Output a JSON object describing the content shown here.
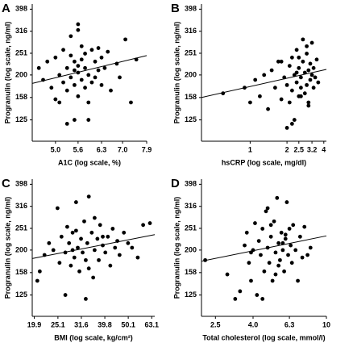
{
  "chart_data": [
    {
      "type": "scatter",
      "label": "A",
      "xlabel": "A1C (log scale, %)",
      "ylabel": "Progranulin (log scale, ng/ml)",
      "xlog": true,
      "ylog": true,
      "color": "#000000",
      "xlim": [
        4.45,
        7.9
      ],
      "ylim": [
        100,
        420
      ],
      "xticks": [
        {
          "value": 5,
          "label": "5.0"
        },
        5.6,
        6.3,
        {
          "value": 7,
          "label": "7.0"
        },
        7.9
      ],
      "yticks": [
        125,
        158,
        200,
        251,
        316,
        398
      ],
      "x": [
        4.6,
        4.7,
        4.8,
        4.9,
        5.0,
        5.0,
        5.1,
        5.1,
        5.2,
        5.2,
        5.3,
        5.3,
        5.3,
        5.4,
        5.4,
        5.4,
        5.5,
        5.5,
        5.5,
        5.5,
        5.6,
        5.6,
        5.6,
        5.6,
        5.7,
        5.7,
        5.7,
        5.8,
        5.8,
        5.8,
        5.9,
        5.9,
        6.0,
        6.0,
        6.1,
        6.1,
        6.2,
        6.2,
        6.3,
        6.3,
        6.4,
        6.5,
        6.6,
        6.8,
        6.9,
        7.1,
        7.3,
        7.5,
        5.6,
        5.9
      ],
      "y": [
        215,
        190,
        230,
        175,
        155,
        240,
        200,
        150,
        185,
        260,
        215,
        120,
        170,
        195,
        245,
        300,
        180,
        210,
        230,
        125,
        205,
        340,
        160,
        220,
        190,
        270,
        235,
        175,
        215,
        250,
        200,
        150,
        260,
        185,
        230,
        195,
        265,
        210,
        180,
        240,
        215,
        255,
        170,
        225,
        195,
        290,
        150,
        235,
        320,
        125
      ],
      "trend": {
        "x": [
          4.45,
          7.9
        ],
        "y": [
          183,
          245
        ]
      }
    },
    {
      "type": "scatter",
      "label": "B",
      "xlabel": "hsCRP (log scale, mg/dl)",
      "ylabel": "Progranulin (log scale, ng/ml)",
      "xlog": true,
      "ylog": true,
      "color": "#000000",
      "xlim": [
        0.4,
        4.2
      ],
      "ylim": [
        100,
        420
      ],
      "xticks": [
        1,
        2,
        2.5,
        3.2,
        4
      ],
      "yticks": [
        125,
        158,
        200,
        251,
        316,
        398
      ],
      "x": [
        0.6,
        0.9,
        1.0,
        1.1,
        1.2,
        1.3,
        1.4,
        1.5,
        1.6,
        1.7,
        1.8,
        1.9,
        2.0,
        2.0,
        2.1,
        2.1,
        2.2,
        2.2,
        2.3,
        2.3,
        2.4,
        2.4,
        2.5,
        2.5,
        2.5,
        2.6,
        2.6,
        2.7,
        2.7,
        2.8,
        2.8,
        2.9,
        2.9,
        3.0,
        3.0,
        3.1,
        3.1,
        3.2,
        3.2,
        3.3,
        3.3,
        3.4,
        3.5,
        3.6,
        2.2,
        1.8,
        2.6,
        2.9,
        3.0,
        2.4
      ],
      "y": [
        165,
        175,
        150,
        190,
        160,
        200,
        140,
        210,
        175,
        230,
        155,
        195,
        115,
        180,
        220,
        150,
        240,
        170,
        125,
        200,
        260,
        185,
        160,
        215,
        240,
        195,
        175,
        230,
        290,
        165,
        205,
        250,
        180,
        210,
        150,
        225,
        190,
        200,
        280,
        175,
        215,
        195,
        235,
        185,
        120,
        230,
        160,
        270,
        145,
        205
      ],
      "trend": {
        "x": [
          0.4,
          4.2
        ],
        "y": [
          158,
          212
        ]
      }
    },
    {
      "type": "scatter",
      "label": "C",
      "xlabel": "BMI (log scale, kg/cm²)",
      "ylabel": "Progranulin (log scale, ng/ml)",
      "xlog": true,
      "ylog": true,
      "color": "#000000",
      "xlim": [
        19.5,
        65
      ],
      "ylim": [
        100,
        420
      ],
      "xticks": [
        19.9,
        25.1,
        31.6,
        39.8,
        50.1,
        63.1
      ],
      "yticks": [
        125,
        158,
        200,
        251,
        316,
        398
      ],
      "x": [
        20.5,
        21,
        22,
        23,
        24,
        25,
        25.5,
        26,
        27,
        27.5,
        28,
        28.5,
        29,
        29.5,
        30,
        30.5,
        31,
        31.5,
        32,
        32.5,
        33,
        33.5,
        34,
        35,
        35.5,
        36,
        37,
        37.5,
        38,
        39,
        40,
        41,
        42,
        43,
        44,
        45,
        46,
        48,
        50,
        52,
        55,
        58,
        62,
        27,
        30,
        33,
        36,
        39,
        29,
        34
      ],
      "y": [
        145,
        160,
        190,
        215,
        200,
        310,
        175,
        230,
        195,
        255,
        215,
        170,
        240,
        185,
        330,
        205,
        160,
        225,
        195,
        270,
        180,
        215,
        350,
        240,
        150,
        200,
        225,
        180,
        260,
        210,
        195,
        230,
        170,
        250,
        205,
        220,
        190,
        240,
        215,
        205,
        185,
        260,
        265,
        125,
        245,
        120,
        280,
        230,
        200,
        165
      ],
      "trend": {
        "x": [
          19.5,
          65
        ],
        "y": [
          183,
          235
        ]
      }
    },
    {
      "type": "scatter",
      "label": "D",
      "xlabel": "Total cholesterol (log scale, mmol/l)",
      "ylabel": "Progranulin (log scale, ng/ml)",
      "xlog": true,
      "ylog": true,
      "color": "#000000",
      "xlim": [
        2.1,
        10
      ],
      "ylim": [
        100,
        420
      ],
      "xticks": [
        2.5,
        {
          "value": 4,
          "label": "4.0"
        },
        6.3,
        10
      ],
      "yticks": [
        125,
        158,
        200,
        251,
        316,
        398
      ],
      "x": [
        2.2,
        2.9,
        3.2,
        3.4,
        3.6,
        3.7,
        3.8,
        3.9,
        4.0,
        4.1,
        4.2,
        4.3,
        4.4,
        4.5,
        4.6,
        4.7,
        4.8,
        4.9,
        5.0,
        5.1,
        5.2,
        5.3,
        5.4,
        5.5,
        5.6,
        5.7,
        5.8,
        5.9,
        6.0,
        6.1,
        6.2,
        6.3,
        6.4,
        6.5,
        6.6,
        6.8,
        7.0,
        7.2,
        7.4,
        7.6,
        7.9,
        8.2,
        4.5,
        5.0,
        5.5,
        6.0,
        4.8,
        5.3,
        5.8,
        3.9
      ],
      "y": [
        180,
        155,
        120,
        130,
        210,
        240,
        175,
        145,
        200,
        265,
        125,
        220,
        190,
        250,
        160,
        300,
        205,
        175,
        230,
        145,
        270,
        195,
        345,
        215,
        180,
        240,
        200,
        160,
        225,
        330,
        190,
        250,
        210,
        175,
        260,
        200,
        145,
        230,
        185,
        255,
        190,
        205,
        120,
        260,
        170,
        235,
        310,
        155,
        215,
        195
      ],
      "trend": {
        "x": [
          2.1,
          10
        ],
        "y": [
          178,
          232
        ]
      }
    }
  ]
}
